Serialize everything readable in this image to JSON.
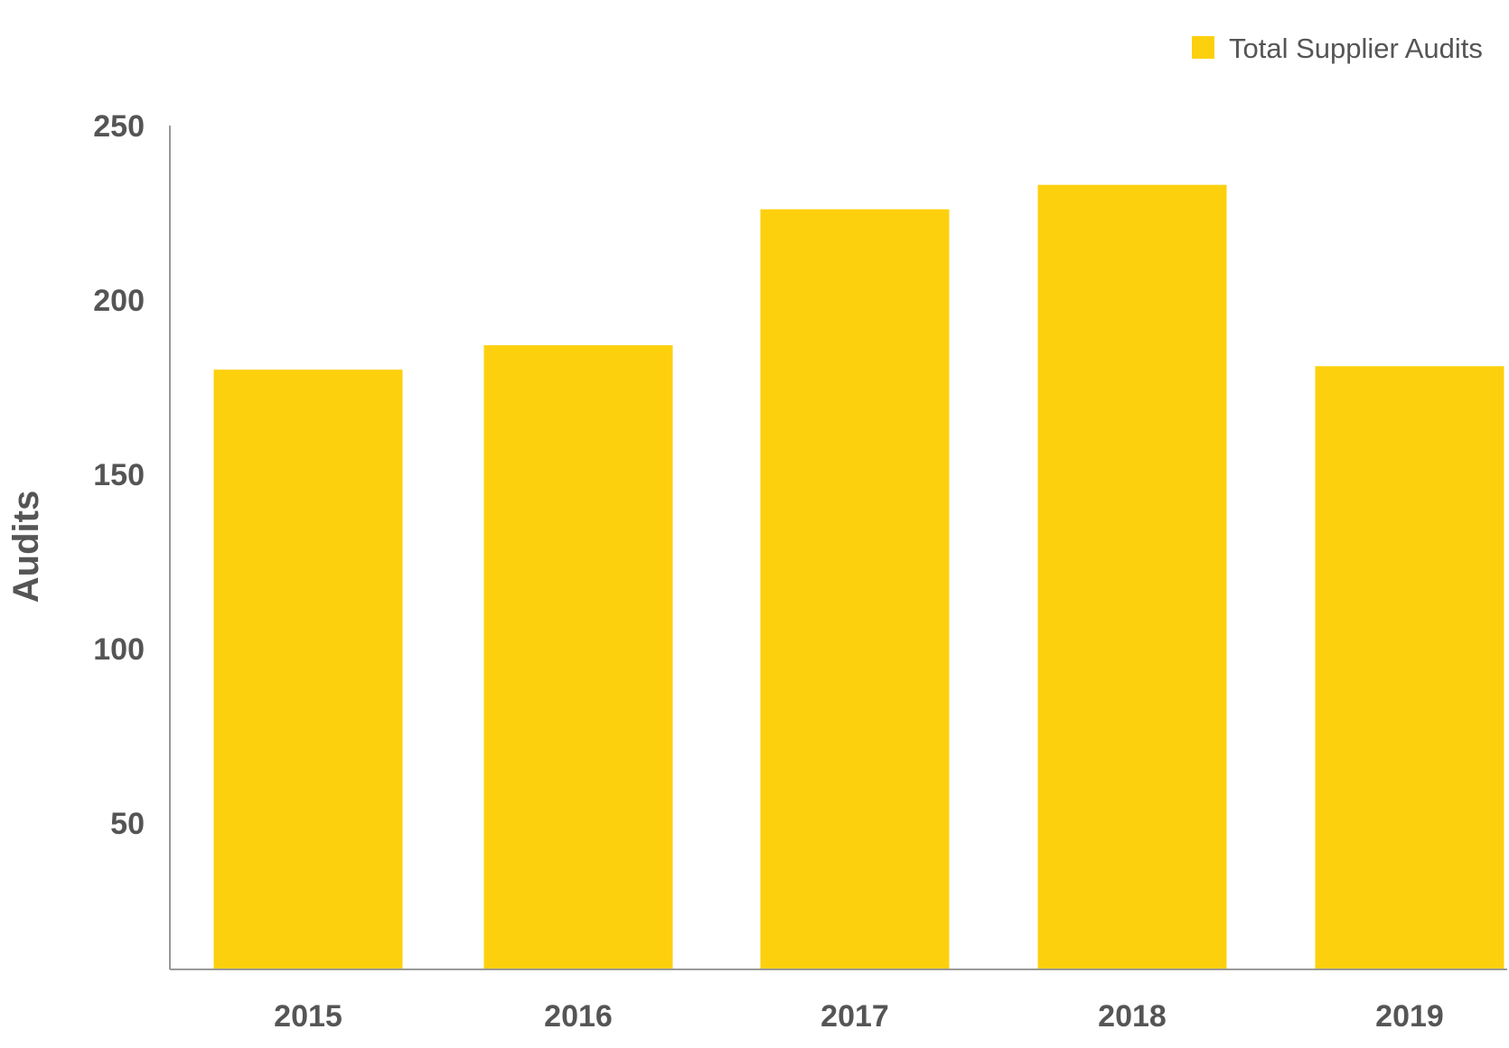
{
  "chart_data": {
    "type": "bar",
    "categories": [
      "2015",
      "2016",
      "2017",
      "2018",
      "2019"
    ],
    "series": [
      {
        "name": "Total Supplier Audits",
        "values": [
          180,
          187,
          226,
          233,
          181
        ],
        "color": "#FDD00E"
      }
    ],
    "title": "",
    "xlabel": "",
    "ylabel": "Audits",
    "ylim": [
      8,
      250
    ],
    "yticks": [
      50,
      100,
      150,
      200,
      250
    ],
    "grid": false,
    "legend": {
      "position": "top-right",
      "items": [
        "Total Supplier Audits"
      ]
    },
    "colors": {
      "bar": "#FDD00E",
      "text": "#555555",
      "axis": "#999999"
    }
  }
}
